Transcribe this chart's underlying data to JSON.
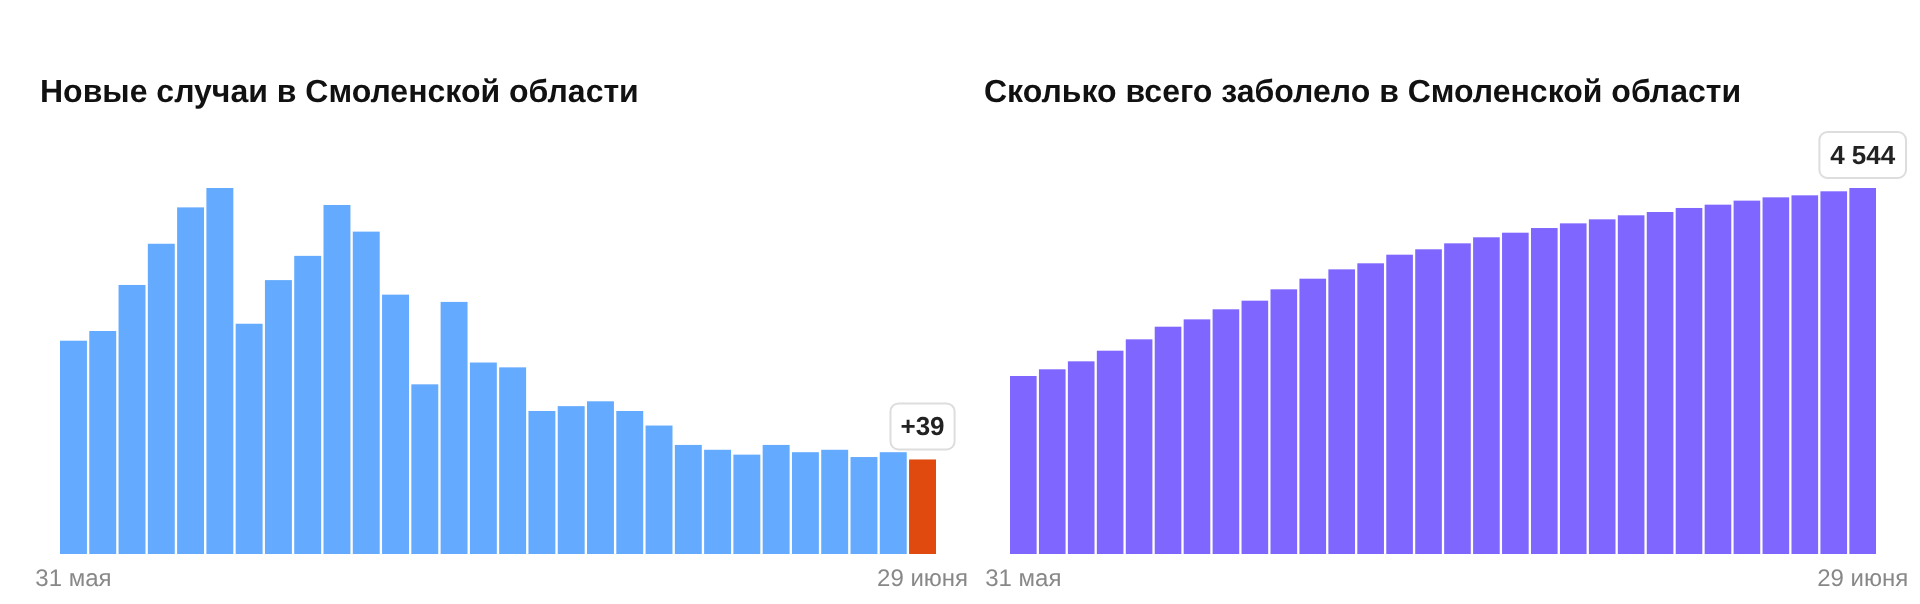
{
  "chart_data": [
    {
      "type": "bar",
      "title": "Новые случаи в Смоленской области",
      "categories": [
        "31 мая",
        null,
        null,
        null,
        null,
        null,
        null,
        null,
        null,
        null,
        null,
        null,
        null,
        null,
        null,
        null,
        null,
        null,
        null,
        null,
        null,
        null,
        null,
        null,
        null,
        null,
        null,
        null,
        null,
        "29 июня"
      ],
      "values": [
        88,
        92,
        111,
        128,
        143,
        151,
        95,
        113,
        123,
        144,
        133,
        107,
        70,
        104,
        79,
        77,
        59,
        61,
        63,
        59,
        53,
        45,
        43,
        41,
        45,
        42,
        43,
        40,
        42,
        39
      ],
      "colors": [
        "#64aaff",
        "#64aaff",
        "#64aaff",
        "#64aaff",
        "#64aaff",
        "#64aaff",
        "#64aaff",
        "#64aaff",
        "#64aaff",
        "#64aaff",
        "#64aaff",
        "#64aaff",
        "#64aaff",
        "#64aaff",
        "#64aaff",
        "#64aaff",
        "#64aaff",
        "#64aaff",
        "#64aaff",
        "#64aaff",
        "#64aaff",
        "#64aaff",
        "#64aaff",
        "#64aaff",
        "#64aaff",
        "#64aaff",
        "#64aaff",
        "#64aaff",
        "#64aaff",
        "#e04a0f"
      ],
      "value_labels": [
        null,
        null,
        null,
        null,
        null,
        null,
        null,
        null,
        null,
        null,
        null,
        null,
        null,
        null,
        null,
        null,
        null,
        null,
        null,
        null,
        null,
        null,
        null,
        null,
        null,
        null,
        null,
        null,
        null,
        "+39"
      ]
    },
    {
      "type": "bar",
      "title": "Сколько всего заболело в Смоленской области",
      "categories": [
        "31 мая",
        null,
        null,
        null,
        null,
        null,
        null,
        null,
        null,
        null,
        null,
        null,
        null,
        null,
        null,
        null,
        null,
        null,
        null,
        null,
        null,
        null,
        null,
        null,
        null,
        null,
        null,
        null,
        null,
        "29 июня"
      ],
      "values": [
        2210,
        2293,
        2392,
        2524,
        2665,
        2822,
        2913,
        3038,
        3145,
        3286,
        3418,
        3534,
        3609,
        3716,
        3783,
        3857,
        3932,
        3989,
        4047,
        4105,
        4155,
        4205,
        4246,
        4296,
        4337,
        4387,
        4428,
        4453,
        4503,
        4544
      ],
      "color": "#7f66ff",
      "value_labels": [
        null,
        null,
        null,
        null,
        null,
        null,
        null,
        null,
        null,
        null,
        null,
        null,
        null,
        null,
        null,
        null,
        null,
        null,
        null,
        null,
        null,
        null,
        null,
        null,
        null,
        null,
        null,
        null,
        null,
        "4 544"
      ]
    }
  ]
}
